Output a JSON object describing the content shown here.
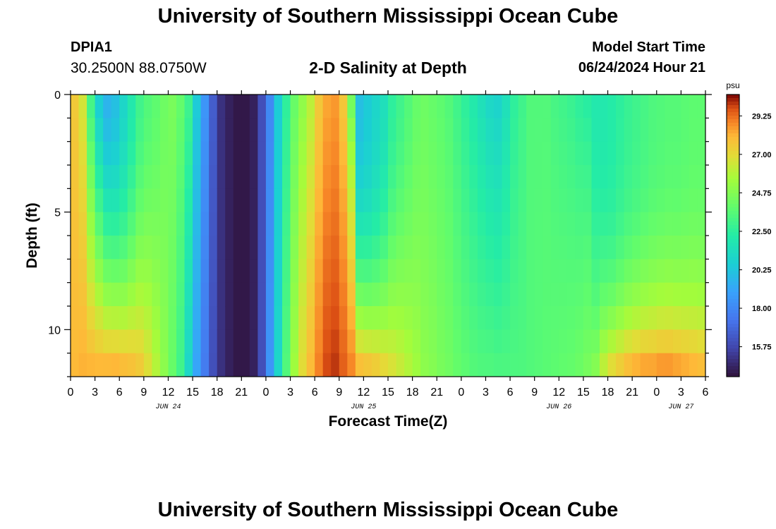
{
  "header": {
    "title": "University of Southern Mississippi Ocean Cube",
    "station_id": "DPIA1",
    "coordinates": "30.2500N  88.0750W",
    "subtitle": "2-D Salinity at Depth",
    "model_start_label": "Model Start Time",
    "model_start_value": "06/24/2024 Hour 21"
  },
  "footer": {
    "title": "University of Southern Mississippi Ocean Cube"
  },
  "chart_data": {
    "type": "heatmap",
    "title": "2-D Salinity at Depth",
    "xlabel": "Forecast Time(Z)",
    "ylabel": "Depth (ft)",
    "x_ticks": [
      "0",
      "3",
      "6",
      "9",
      "12",
      "15",
      "18",
      "21",
      "0",
      "3",
      "6",
      "9",
      "12",
      "15",
      "18",
      "21",
      "0",
      "3",
      "6",
      "9",
      "12",
      "15",
      "18",
      "21",
      "0",
      "3",
      "6"
    ],
    "x_date_labels": [
      {
        "label": "JUN 24",
        "at_hour": 12
      },
      {
        "label": "JUN 25",
        "at_hour": 36
      },
      {
        "label": "JUN 26",
        "at_hour": 60
      },
      {
        "label": "JUN 27",
        "at_hour": 75
      }
    ],
    "x_range_hours": [
      0,
      78
    ],
    "y_ticks": [
      "0",
      "5",
      "10"
    ],
    "y_range_ft": [
      0,
      12
    ],
    "colorbar": {
      "unit": "psu",
      "ticks": [
        "29.25",
        "27.00",
        "24.75",
        "22.50",
        "20.25",
        "18.00",
        "15.75"
      ],
      "range": [
        14.0,
        30.5
      ]
    },
    "column_hours": [
      0,
      1,
      2,
      3,
      4,
      5,
      6,
      7,
      8,
      9,
      10,
      11,
      12,
      13,
      14,
      15,
      16,
      17,
      18,
      19,
      20,
      21,
      22,
      23,
      24,
      25,
      26,
      27,
      28,
      29,
      30,
      31,
      32,
      33,
      34,
      35,
      36,
      37,
      38,
      39,
      40,
      41,
      42,
      43,
      44,
      45,
      46,
      47,
      48,
      49,
      50,
      51,
      52,
      53,
      54,
      55,
      56,
      57,
      58,
      59,
      60,
      61,
      62,
      63,
      64,
      65,
      66,
      67,
      68,
      69,
      70,
      71,
      72,
      73,
      74,
      75,
      76,
      77
    ],
    "surface_salinity": [
      27.5,
      26.5,
      23.0,
      20.5,
      19.5,
      20.0,
      21.0,
      22.0,
      23.0,
      23.5,
      23.8,
      24.2,
      24.5,
      24.0,
      23.0,
      20.5,
      18.5,
      16.5,
      15.0,
      14.5,
      14.2,
      14.2,
      14.5,
      16.0,
      18.0,
      20.5,
      22.5,
      24.0,
      25.0,
      26.0,
      27.5,
      28.3,
      28.5,
      27.5,
      24.0,
      20.0,
      20.5,
      21.0,
      21.5,
      22.5,
      23.0,
      23.5,
      24.0,
      24.2,
      24.0,
      23.8,
      23.5,
      23.0,
      22.5,
      22.0,
      21.5,
      21.0,
      20.8,
      21.5,
      22.5,
      23.0,
      23.5,
      23.5,
      23.5,
      23.2,
      23.0,
      22.8,
      22.5,
      22.3,
      22.0,
      22.0,
      22.2,
      22.5,
      22.8,
      23.0,
      23.2,
      23.4,
      23.5,
      23.6,
      23.6,
      23.7,
      23.8,
      23.8
    ],
    "bottom_salinity": [
      28.0,
      28.2,
      28.3,
      28.4,
      28.5,
      28.6,
      28.4,
      28.2,
      27.8,
      27.0,
      26.0,
      25.0,
      24.0,
      23.0,
      21.0,
      19.0,
      17.5,
      16.0,
      15.0,
      14.5,
      14.2,
      14.2,
      14.5,
      16.0,
      18.5,
      21.0,
      23.5,
      25.5,
      27.0,
      28.0,
      29.0,
      29.8,
      30.0,
      29.5,
      29.0,
      28.5,
      28.3,
      28.0,
      27.5,
      27.0,
      26.5,
      26.0,
      25.5,
      25.0,
      24.8,
      24.5,
      24.3,
      24.0,
      23.8,
      23.6,
      23.5,
      23.5,
      23.4,
      23.4,
      23.4,
      23.4,
      23.5,
      23.6,
      23.7,
      23.8,
      23.9,
      24.0,
      24.2,
      24.5,
      25.0,
      26.5,
      27.5,
      28.0,
      28.5,
      28.8,
      29.0,
      29.0,
      29.2,
      29.2,
      29.0,
      28.8,
      28.6,
      28.4
    ],
    "mixing_exponent": [
      1.0,
      1.0,
      1.1,
      1.2,
      1.4,
      1.6,
      1.8,
      1.8,
      1.7,
      1.6,
      1.5,
      1.3,
      1.0,
      0.9,
      1.0,
      1.0,
      1.0,
      1.0,
      1.0,
      1.0,
      1.0,
      1.0,
      1.0,
      1.0,
      1.0,
      1.0,
      1.0,
      1.0,
      1.0,
      1.0,
      1.0,
      1.0,
      1.0,
      0.9,
      0.8,
      2.0,
      2.2,
      2.2,
      2.0,
      1.8,
      1.6,
      1.5,
      1.4,
      1.3,
      1.2,
      1.1,
      1.0,
      1.0,
      1.0,
      1.0,
      1.0,
      1.0,
      1.0,
      1.0,
      1.0,
      1.0,
      1.0,
      1.0,
      1.0,
      1.0,
      1.0,
      1.0,
      1.0,
      1.0,
      2.0,
      2.5,
      3.0,
      3.0,
      3.0,
      3.0,
      3.0,
      3.0,
      3.0,
      3.0,
      3.0,
      3.0,
      3.0,
      3.0
    ],
    "depth_rows": 12
  }
}
